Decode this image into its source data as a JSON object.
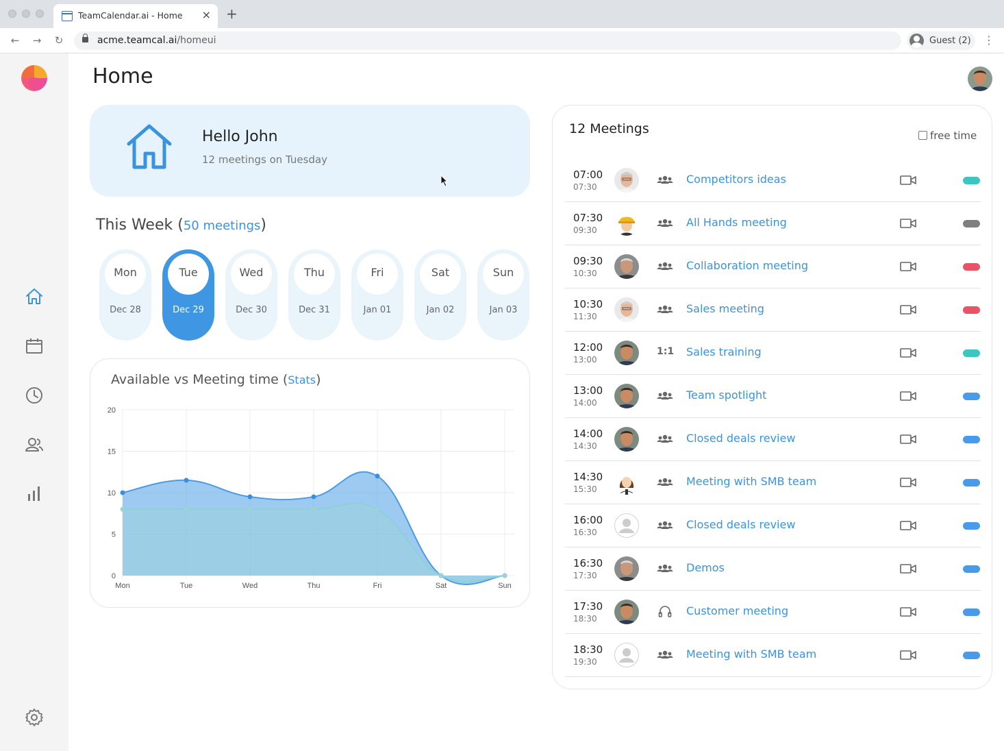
{
  "browser": {
    "tab_title": "TeamCalendar.ai - Home",
    "tab_close": "×",
    "new_tab": "+",
    "url_host": "acme.teamcal.ai",
    "url_path": "/homeui",
    "profile_label": "Guest (2)",
    "back_glyph": "←",
    "forward_glyph": "→",
    "reload_glyph": "↻",
    "menu_glyph": "⋮"
  },
  "page": {
    "title": "Home"
  },
  "hello": {
    "title": "Hello John",
    "subtitle": "12 meetings on Tuesday"
  },
  "week": {
    "title": "This Week",
    "open_paren": "(",
    "link": "50 meetings",
    "close_paren": ")",
    "days": [
      {
        "day": "Mon",
        "date": "Dec 28",
        "active": false
      },
      {
        "day": "Tue",
        "date": "Dec 29",
        "active": true
      },
      {
        "day": "Wed",
        "date": "Dec 30",
        "active": false
      },
      {
        "day": "Thu",
        "date": "Dec 31",
        "active": false
      },
      {
        "day": "Fri",
        "date": "Jan 01",
        "active": false
      },
      {
        "day": "Sat",
        "date": "Jan 02",
        "active": false
      },
      {
        "day": "Sun",
        "date": "Jan 03",
        "active": false
      }
    ]
  },
  "stats": {
    "title": "Available vs Meeting time",
    "open_paren": "(",
    "link": "Stats",
    "close_paren": ")"
  },
  "chart_data": {
    "type": "area",
    "categories": [
      "Mon",
      "Tue",
      "Wed",
      "Thu",
      "Fri",
      "Sat",
      "Sun"
    ],
    "series": [
      {
        "values": [
          10,
          11.5,
          9.5,
          9.5,
          12,
          0,
          0
        ],
        "color": "#5aa6e6"
      },
      {
        "values": [
          8,
          8,
          8,
          8,
          8,
          0,
          0
        ],
        "color": "#9cd4dc"
      }
    ],
    "ylim": [
      0,
      20
    ],
    "yticks": [
      0,
      5,
      10,
      15,
      20
    ],
    "grid": true
  },
  "meetings": {
    "title": "12 Meetings",
    "free_time_label": "free time",
    "items": [
      {
        "start": "07:00",
        "end": "07:30",
        "title": "Competitors ideas",
        "type": "group",
        "avatar": "older",
        "status": "#3cc6c2"
      },
      {
        "start": "07:30",
        "end": "09:30",
        "title": "All Hands meeting",
        "type": "group",
        "avatar": "cartoon-worker",
        "status": "#7f7f7f"
      },
      {
        "start": "09:30",
        "end": "10:30",
        "title": "Collaboration meeting",
        "type": "group",
        "avatar": "grey-hair",
        "status": "#e85466"
      },
      {
        "start": "10:30",
        "end": "11:30",
        "title": "Sales meeting",
        "type": "group",
        "avatar": "older",
        "status": "#e85466"
      },
      {
        "start": "12:00",
        "end": "13:00",
        "title": "Sales training",
        "type": "one-on-one",
        "type_label": "1:1",
        "avatar": "man",
        "status": "#3cc6c2"
      },
      {
        "start": "13:00",
        "end": "14:00",
        "title": "Team spotlight",
        "type": "group",
        "avatar": "man",
        "status": "#4a9aea"
      },
      {
        "start": "14:00",
        "end": "14:30",
        "title": "Closed deals review",
        "type": "group",
        "avatar": "man",
        "status": "#4a9aea"
      },
      {
        "start": "14:30",
        "end": "15:30",
        "title": "Meeting with SMB team",
        "type": "group",
        "avatar": "cartoon-woman",
        "status": "#4a9aea"
      },
      {
        "start": "16:00",
        "end": "16:30",
        "title": "Closed deals review",
        "type": "group",
        "avatar": "placeholder",
        "status": "#4a9aea"
      },
      {
        "start": "16:30",
        "end": "17:30",
        "title": "Demos",
        "type": "group",
        "avatar": "grey-hair",
        "status": "#4a9aea"
      },
      {
        "start": "17:30",
        "end": "18:30",
        "title": "Customer meeting",
        "type": "headset",
        "avatar": "man",
        "status": "#4a9aea"
      },
      {
        "start": "18:30",
        "end": "19:30",
        "title": "Meeting with SMB team",
        "type": "group",
        "avatar": "placeholder",
        "status": "#4a9aea"
      }
    ]
  },
  "colors": {
    "accent": "#3a93dd",
    "active_day": "#3f97e3",
    "hello_bg": "#e6f3fc"
  }
}
